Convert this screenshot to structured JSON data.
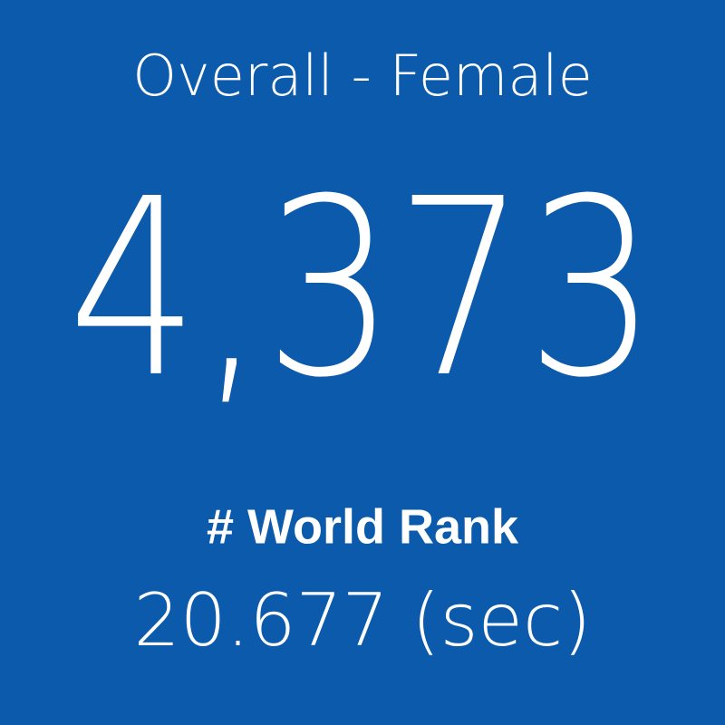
{
  "tile": {
    "title": "Overall - Female",
    "value": "4,373",
    "label": "# World Rank",
    "subvalue": "20.677 (sec)"
  }
}
